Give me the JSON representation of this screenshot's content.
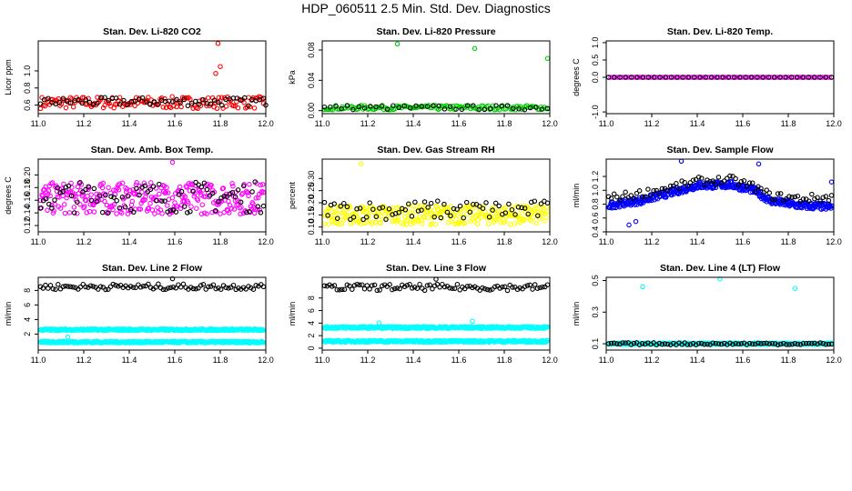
{
  "title": "HDP_060511  2.5 Min. Std. Dev. Diagnostics",
  "colors": {
    "black": "#000000",
    "red": "#ff0000",
    "green": "#00cc00",
    "magenta": "#ff00ff",
    "yellow": "#ffff00",
    "blue": "#0000ff",
    "cyan": "#00ffff"
  },
  "chart_data": [
    {
      "type": "scatter",
      "title": "Stan. Dev. Li-820 CO2",
      "ylabel": "Licor ppm",
      "xlim": [
        11.0,
        12.0
      ],
      "ylim": [
        0.5,
        1.35
      ],
      "xticks": [
        "11.0",
        "11.2",
        "11.4",
        "11.6",
        "11.8",
        "12.0"
      ],
      "yticks": [
        "0.6",
        "0.8",
        "1.0"
      ],
      "series": [
        {
          "color": "red",
          "level": 0.63,
          "spread": 0.07,
          "points": 150,
          "outliers": [
            [
              11.79,
              1.32
            ],
            [
              11.8,
              1.05
            ],
            [
              11.78,
              0.97
            ]
          ]
        },
        {
          "color": "black",
          "level": 0.64,
          "spread": 0.05,
          "points": 60,
          "outliers": [
            [
              12.0,
              0.6
            ]
          ]
        }
      ]
    },
    {
      "type": "scatter",
      "title": "Stan. Dev. Li-820 Pressure",
      "ylabel": "kPa",
      "xlim": [
        11.0,
        12.0
      ],
      "ylim": [
        -0.004,
        0.092
      ],
      "xticks": [
        "11.0",
        "11.2",
        "11.4",
        "11.6",
        "11.8",
        "12.0"
      ],
      "yticks": [
        "0.00",
        "0.04",
        "0.08"
      ],
      "series": [
        {
          "color": "green",
          "level": 0.004,
          "spread": 0.003,
          "points": 140,
          "outliers": [
            [
              11.33,
              0.088
            ],
            [
              11.67,
              0.082
            ],
            [
              11.99,
              0.069
            ]
          ]
        },
        {
          "color": "black",
          "level": 0.004,
          "spread": 0.003,
          "points": 40,
          "outliers": []
        }
      ]
    },
    {
      "type": "scatter",
      "title": "Stan. Dev. Li-820 Temp.",
      "ylabel": "degrees C",
      "xlim": [
        11.0,
        12.0
      ],
      "ylim": [
        -1.05,
        1.05
      ],
      "xticks": [
        "11.0",
        "11.2",
        "11.4",
        "11.6",
        "11.8",
        "12.0"
      ],
      "yticks": [
        "-1.0",
        "0.0",
        "0.5",
        "1.0"
      ],
      "series": [
        {
          "color": "magenta",
          "level": 0.0,
          "spread": 0.0,
          "points": 100,
          "outliers": []
        },
        {
          "color": "black",
          "level": 0.0,
          "spread": 0.0,
          "points": 40,
          "outliers": []
        }
      ]
    },
    {
      "type": "scatter",
      "title": "Stan. Dev. Amb. Box Temp.",
      "ylabel": "degrees C",
      "xlim": [
        11.0,
        12.0
      ],
      "ylim": [
        0.11,
        0.225
      ],
      "xticks": [
        "11.0",
        "11.2",
        "11.4",
        "11.6",
        "11.8",
        "12.0"
      ],
      "yticks": [
        "0.12",
        "0.14",
        "0.16",
        "0.18",
        "0.20"
      ],
      "series": [
        {
          "color": "magenta",
          "level": 0.163,
          "spread": 0.025,
          "points": 300,
          "outliers": [
            [
              11.59,
              0.22
            ]
          ]
        },
        {
          "color": "black",
          "level": 0.165,
          "spread": 0.025,
          "points": 80,
          "outliers": []
        }
      ]
    },
    {
      "type": "scatter",
      "title": "Stan. Dev. Gas Stream RH",
      "ylabel": "percent",
      "xlim": [
        11.0,
        12.0
      ],
      "ylim": [
        0.08,
        0.38
      ],
      "xticks": [
        "11.0",
        "11.2",
        "11.4",
        "11.6",
        "11.8",
        "12.0"
      ],
      "yticks": [
        "0.10",
        "0.15",
        "0.20",
        "0.25",
        "0.30"
      ],
      "series": [
        {
          "color": "yellow",
          "level": 0.15,
          "spread": 0.04,
          "points": 300,
          "outliers": [
            [
              11.17,
              0.36
            ]
          ]
        },
        {
          "color": "black",
          "level": 0.17,
          "spread": 0.04,
          "points": 70,
          "outliers": []
        }
      ]
    },
    {
      "type": "scatter",
      "title": "Stan. Dev. Sample Flow",
      "ylabel": "ml/min",
      "xlim": [
        11.0,
        12.0
      ],
      "ylim": [
        0.4,
        1.45
      ],
      "xticks": [
        "11.0",
        "11.2",
        "11.4",
        "11.6",
        "11.8",
        "12.0"
      ],
      "yticks": [
        "0.4",
        "0.6",
        "0.8",
        "1.0",
        "1.2"
      ],
      "series": [
        {
          "color": "blue",
          "curve": [
            [
              11.0,
              0.78
            ],
            [
              11.15,
              0.85
            ],
            [
              11.3,
              0.98
            ],
            [
              11.4,
              1.07
            ],
            [
              11.55,
              1.08
            ],
            [
              11.65,
              1.0
            ],
            [
              11.72,
              0.85
            ],
            [
              11.85,
              0.78
            ],
            [
              12.0,
              0.76
            ]
          ],
          "spread": 0.05,
          "points": 400,
          "outliers": [
            [
              11.33,
              1.42
            ],
            [
              11.67,
              1.38
            ],
            [
              11.1,
              0.5
            ],
            [
              11.13,
              0.55
            ],
            [
              11.99,
              1.12
            ]
          ]
        },
        {
          "color": "black",
          "curve": [
            [
              11.0,
              0.88
            ],
            [
              11.15,
              0.95
            ],
            [
              11.3,
              1.05
            ],
            [
              11.4,
              1.13
            ],
            [
              11.55,
              1.15
            ],
            [
              11.65,
              1.05
            ],
            [
              11.72,
              0.92
            ],
            [
              11.85,
              0.88
            ],
            [
              12.0,
              0.9
            ]
          ],
          "spread": 0.06,
          "points": 80,
          "outliers": []
        }
      ]
    },
    {
      "type": "scatter",
      "title": "Stan. Dev. Line 2 Flow",
      "ylabel": "ml/min",
      "xlim": [
        11.0,
        12.0
      ],
      "ylim": [
        -0.2,
        9.8
      ],
      "xticks": [
        "11.0",
        "11.2",
        "11.4",
        "11.6",
        "11.8",
        "12.0"
      ],
      "yticks": [
        "2",
        "4",
        "6",
        "8"
      ],
      "series": [
        {
          "color": "cyan",
          "level": 2.6,
          "spread": 0.12,
          "points": 350,
          "outliers": []
        },
        {
          "color": "cyan",
          "level": 0.9,
          "spread": 0.12,
          "points": 350,
          "outliers": [
            [
              11.13,
              1.6
            ]
          ]
        },
        {
          "color": "black",
          "level": 8.5,
          "spread": 0.4,
          "points": 90,
          "outliers": [
            [
              11.59,
              9.6
            ]
          ]
        }
      ]
    },
    {
      "type": "scatter",
      "title": "Stan. Dev. Line 3 Flow",
      "ylabel": "ml/min",
      "xlim": [
        11.0,
        12.0
      ],
      "ylim": [
        -0.3,
        11.3
      ],
      "xticks": [
        "11.0",
        "11.2",
        "11.4",
        "11.6",
        "11.8",
        "12.0"
      ],
      "yticks": [
        "0",
        "2",
        "4",
        "6",
        "8"
      ],
      "series": [
        {
          "color": "cyan",
          "level": 3.3,
          "spread": 0.15,
          "points": 350,
          "outliers": [
            [
              11.66,
              4.3
            ],
            [
              11.25,
              4.0
            ]
          ]
        },
        {
          "color": "cyan",
          "level": 1.1,
          "spread": 0.15,
          "points": 350,
          "outliers": []
        },
        {
          "color": "black",
          "level": 9.7,
          "spread": 0.5,
          "points": 90,
          "outliers": [
            [
              11.5,
              11.0
            ]
          ]
        }
      ]
    },
    {
      "type": "scatter",
      "title": "Stan. Dev. Line 4 (LT) Flow",
      "ylabel": "ml/min",
      "xlim": [
        11.0,
        12.0
      ],
      "ylim": [
        0.06,
        0.52
      ],
      "xticks": [
        "11.0",
        "11.2",
        "11.4",
        "11.6",
        "11.8",
        "12.0"
      ],
      "yticks": [
        "0.1",
        "0.3",
        "0.5"
      ],
      "series": [
        {
          "color": "cyan",
          "level": 0.1,
          "spread": 0.005,
          "points": 300,
          "outliers": [
            [
              11.16,
              0.46
            ],
            [
              11.5,
              0.51
            ],
            [
              11.83,
              0.45
            ]
          ]
        },
        {
          "color": "black",
          "level": 0.1,
          "spread": 0.007,
          "points": 80,
          "outliers": []
        }
      ]
    }
  ]
}
